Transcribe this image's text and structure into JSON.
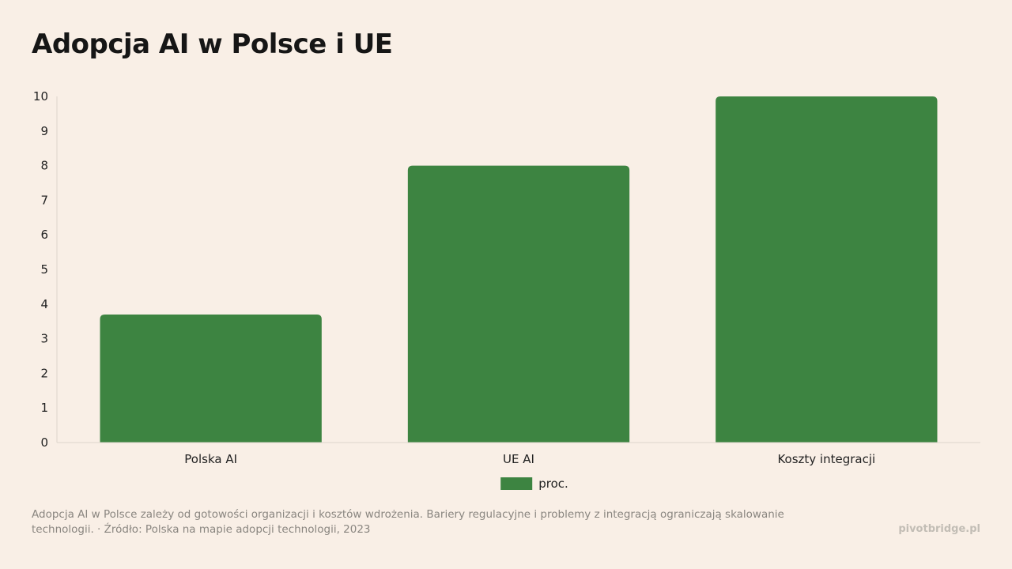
{
  "title": "Adopcja AI w Polsce i UE",
  "chart_data": {
    "type": "bar",
    "categories": [
      "Polska AI",
      "UE AI",
      "Koszty integracji"
    ],
    "series": [
      {
        "name": "proc.",
        "values": [
          3.7,
          8.0,
          10.0
        ],
        "color": "#3d8441"
      }
    ],
    "ylim": [
      0,
      10
    ],
    "yticks": [
      "0",
      "1",
      "2",
      "3",
      "4",
      "5",
      "6",
      "7",
      "8",
      "9",
      "10"
    ],
    "grid": false,
    "legend_position": "bottom-center"
  },
  "footer": {
    "note": "Adopcja AI w Polsce zależy od gotowości organizacji i kosztów wdrożenia. Bariery regulacyjne i problemy z integracją ograniczają skalowanie technologii. · Źródło: Polska na mapie adopcji technologii, 2023",
    "brand": "pivotbridge.pl"
  }
}
